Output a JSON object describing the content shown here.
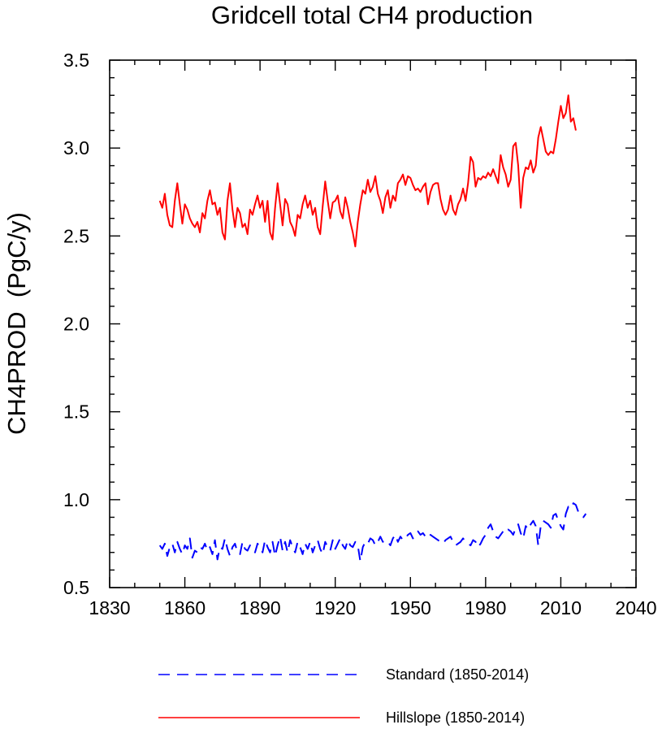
{
  "chart_data": {
    "type": "line",
    "title": "Gridcell total CH4 production",
    "xlabel": "",
    "ylabel": "CH4PROD  (PgC/y)",
    "xlim": [
      1830,
      2040
    ],
    "ylim": [
      0.5,
      3.5
    ],
    "xticks": [
      1830,
      1860,
      1890,
      1920,
      1950,
      1980,
      2010,
      2040
    ],
    "xtick_labels": [
      "1830",
      "1860",
      "1890",
      "1920",
      "1950",
      "1980",
      "2010",
      "2040"
    ],
    "yticks": [
      0.5,
      1.0,
      1.5,
      2.0,
      2.5,
      3.0,
      3.5
    ],
    "ytick_labels": [
      "0.5",
      "1.0",
      "1.5",
      "2.0",
      "2.5",
      "3.0",
      "3.5"
    ],
    "legend_position": "bottom",
    "series": [
      {
        "name": "Standard (1850-2014)",
        "color": "#0000ff",
        "dash": "dashed",
        "x_start": 1850,
        "values": [
          0.74,
          0.72,
          0.75,
          0.68,
          0.73,
          0.75,
          0.7,
          0.76,
          0.72,
          0.69,
          0.74,
          0.72,
          0.78,
          0.67,
          0.71,
          0.7,
          0.73,
          0.72,
          0.75,
          0.71,
          0.73,
          0.69,
          0.77,
          0.66,
          0.73,
          0.72,
          0.78,
          0.72,
          0.68,
          0.73,
          0.75,
          0.7,
          0.69,
          0.76,
          0.72,
          0.71,
          0.74,
          0.73,
          0.7,
          0.75,
          0.73,
          0.7,
          0.77,
          0.73,
          0.7,
          0.76,
          0.68,
          0.74,
          0.79,
          0.71,
          0.76,
          0.7,
          0.77,
          0.73,
          0.7,
          0.76,
          0.73,
          0.69,
          0.75,
          0.72,
          0.76,
          0.7,
          0.74,
          0.77,
          0.72,
          0.69,
          0.76,
          0.73,
          0.71,
          0.77,
          0.72,
          0.75,
          0.78,
          0.74,
          0.72,
          0.77,
          0.74,
          0.73,
          0.76,
          0.74,
          0.65,
          0.73,
          0.76,
          0.75,
          0.78,
          0.77,
          0.74,
          0.76,
          0.79,
          0.76,
          0.77,
          0.76,
          0.74,
          0.78,
          0.8,
          0.76,
          0.79,
          0.77,
          0.78,
          0.8,
          0.81,
          0.78,
          0.8,
          0.82,
          0.8,
          0.81,
          0.79,
          0.78,
          0.8,
          0.79,
          0.78,
          0.77,
          0.76,
          0.75,
          0.77,
          0.78,
          0.79,
          0.76,
          0.74,
          0.75,
          0.76,
          0.78,
          0.76,
          0.75,
          0.74,
          0.77,
          0.76,
          0.73,
          0.75,
          0.78,
          0.8,
          0.84,
          0.86,
          0.82,
          0.79,
          0.78,
          0.8,
          0.82,
          0.81,
          0.83,
          0.82,
          0.8,
          0.84,
          0.86,
          0.81,
          0.78,
          0.85,
          0.83,
          0.86,
          0.88,
          0.85,
          0.74,
          0.85,
          0.88,
          0.87,
          0.86,
          0.84,
          0.91,
          0.92,
          0.88,
          0.85,
          0.83,
          0.92,
          0.96,
          0.95,
          0.98,
          0.97,
          0.93,
          0.91,
          0.9,
          0.92
        ]
      },
      {
        "name": "Hillslope (1850-2014)",
        "color": "#ff0000",
        "dash": "solid",
        "x_start": 1850,
        "values": [
          2.7,
          2.66,
          2.74,
          2.62,
          2.56,
          2.55,
          2.7,
          2.8,
          2.68,
          2.57,
          2.68,
          2.65,
          2.6,
          2.57,
          2.55,
          2.58,
          2.52,
          2.63,
          2.6,
          2.7,
          2.76,
          2.68,
          2.69,
          2.62,
          2.66,
          2.52,
          2.48,
          2.7,
          2.8,
          2.65,
          2.55,
          2.66,
          2.63,
          2.55,
          2.57,
          2.51,
          2.65,
          2.62,
          2.68,
          2.73,
          2.66,
          2.7,
          2.58,
          2.7,
          2.52,
          2.48,
          2.66,
          2.8,
          2.68,
          2.56,
          2.71,
          2.68,
          2.58,
          2.55,
          2.5,
          2.62,
          2.6,
          2.68,
          2.73,
          2.66,
          2.7,
          2.62,
          2.66,
          2.55,
          2.51,
          2.67,
          2.81,
          2.7,
          2.6,
          2.69,
          2.7,
          2.73,
          2.64,
          2.6,
          2.72,
          2.66,
          2.58,
          2.52,
          2.44,
          2.58,
          2.68,
          2.76,
          2.74,
          2.82,
          2.75,
          2.78,
          2.84,
          2.74,
          2.7,
          2.63,
          2.72,
          2.76,
          2.66,
          2.73,
          2.7,
          2.8,
          2.82,
          2.85,
          2.79,
          2.84,
          2.83,
          2.79,
          2.76,
          2.77,
          2.75,
          2.78,
          2.8,
          2.68,
          2.75,
          2.79,
          2.8,
          2.8,
          2.71,
          2.65,
          2.62,
          2.65,
          2.73,
          2.65,
          2.62,
          2.68,
          2.71,
          2.77,
          2.7,
          2.8,
          2.95,
          2.92,
          2.78,
          2.83,
          2.82,
          2.84,
          2.83,
          2.86,
          2.84,
          2.88,
          2.84,
          2.8,
          2.96,
          2.89,
          2.85,
          2.78,
          2.82,
          3.01,
          3.03,
          2.9,
          2.66,
          2.83,
          2.89,
          2.88,
          2.93,
          2.86,
          2.9,
          3.06,
          3.12,
          3.05,
          2.98,
          2.96,
          2.98,
          2.97,
          3.05,
          3.15,
          3.24,
          3.17,
          3.2,
          3.3,
          3.15,
          3.17,
          3.1
        ]
      }
    ]
  }
}
